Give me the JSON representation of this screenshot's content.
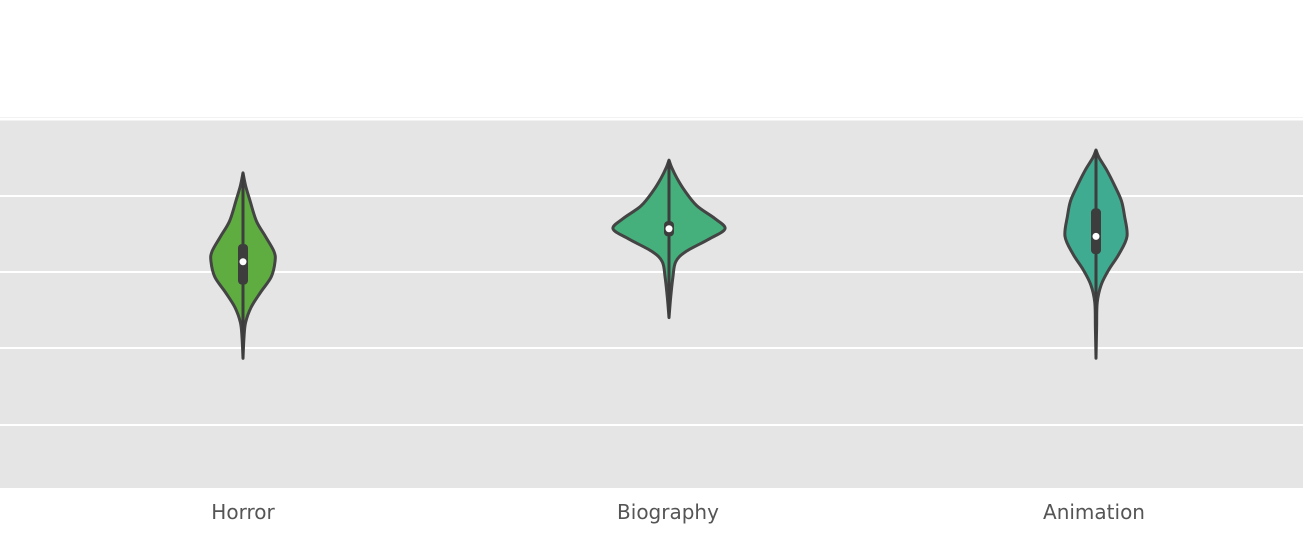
{
  "chart_data": {
    "type": "violin",
    "categories": [
      "Horror",
      "Biography",
      "Animation"
    ],
    "title": "",
    "xlabel": "",
    "ylabel": "",
    "y_gridlines_visible": true,
    "legend": "none",
    "colors": {
      "panel_background": "#e5e5e5",
      "gridline": "#ffffff",
      "outline": "#444444",
      "box": "#3d3d3d",
      "median_dot": "#ffffff",
      "tick_label": "#555555"
    },
    "series": [
      {
        "category": "Horror",
        "color": "#5fad41",
        "min": 0.18,
        "q1": 0.47,
        "median": 0.56,
        "q3": 0.63,
        "max": 0.91,
        "density": [
          [
            0.18,
            0.0
          ],
          [
            0.26,
            0.03
          ],
          [
            0.32,
            0.08
          ],
          [
            0.38,
            0.25
          ],
          [
            0.44,
            0.55
          ],
          [
            0.5,
            0.88
          ],
          [
            0.56,
            1.0
          ],
          [
            0.6,
            0.97
          ],
          [
            0.66,
            0.7
          ],
          [
            0.72,
            0.42
          ],
          [
            0.8,
            0.22
          ],
          [
            0.86,
            0.08
          ],
          [
            0.91,
            0.0
          ]
        ]
      },
      {
        "category": "Biography",
        "color": "#45b07c",
        "min": 0.34,
        "q1": 0.66,
        "median": 0.69,
        "q3": 0.72,
        "max": 0.96,
        "density": [
          [
            0.34,
            0.0
          ],
          [
            0.42,
            0.03
          ],
          [
            0.5,
            0.07
          ],
          [
            0.56,
            0.12
          ],
          [
            0.6,
            0.3
          ],
          [
            0.65,
            0.72
          ],
          [
            0.69,
            1.0
          ],
          [
            0.73,
            0.82
          ],
          [
            0.78,
            0.5
          ],
          [
            0.84,
            0.28
          ],
          [
            0.89,
            0.14
          ],
          [
            0.93,
            0.05
          ],
          [
            0.96,
            0.0
          ]
        ]
      },
      {
        "category": "Animation",
        "color": "#3fac92",
        "min": 0.18,
        "q1": 0.59,
        "median": 0.66,
        "q3": 0.77,
        "max": 1.0,
        "density": [
          [
            0.18,
            0.0
          ],
          [
            0.3,
            0.02
          ],
          [
            0.4,
            0.04
          ],
          [
            0.47,
            0.17
          ],
          [
            0.53,
            0.42
          ],
          [
            0.59,
            0.74
          ],
          [
            0.66,
            1.0
          ],
          [
            0.74,
            0.92
          ],
          [
            0.8,
            0.82
          ],
          [
            0.86,
            0.6
          ],
          [
            0.92,
            0.35
          ],
          [
            0.97,
            0.1
          ],
          [
            1.0,
            0.0
          ]
        ]
      }
    ]
  }
}
